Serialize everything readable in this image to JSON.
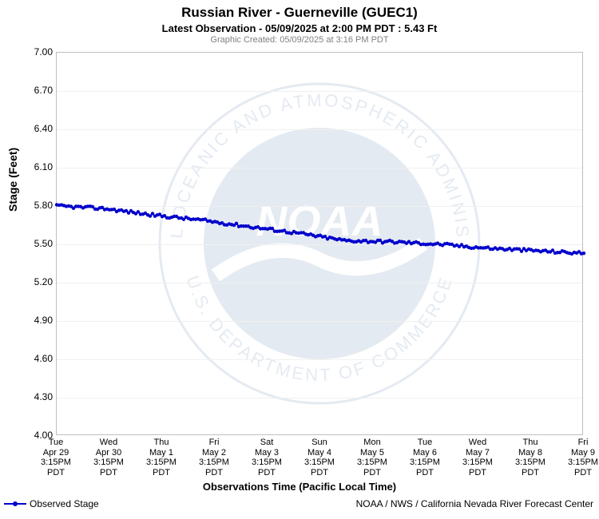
{
  "title": "Russian River - Guerneville (GUEC1)",
  "subtitle": "Latest Observation - 05/09/2025 at 2:00 PM PDT : 5.43 Ft",
  "created": "Graphic Created: 05/09/2025 at 3:16 PM PDT",
  "watermark_text": "NOAA",
  "chart": {
    "type": "line",
    "background_color": "#ffffff",
    "grid_color": "#f0f0f0",
    "border_color": "#bfbfbf",
    "series_color": "#0000cc",
    "marker_radius": 2.2,
    "line_width": 1.5,
    "ylabel": "Stage (Feet)",
    "xlabel": "Observations Time (Pacific Local Time)",
    "ylabel_fontsize": 14,
    "xlabel_fontsize": 13,
    "tick_fontsize": 12,
    "ylim": [
      4.0,
      7.0
    ],
    "ytick_step": 0.3,
    "yticks": [
      4.0,
      4.3,
      4.6,
      4.9,
      5.2,
      5.5,
      5.8,
      6.1,
      6.4,
      6.7,
      7.0
    ],
    "xtick_labels": [
      [
        "Tue",
        "Apr 29",
        "3:15PM",
        "PDT"
      ],
      [
        "Wed",
        "Apr 30",
        "3:15PM",
        "PDT"
      ],
      [
        "Thu",
        "May 1",
        "3:15PM",
        "PDT"
      ],
      [
        "Fri",
        "May 2",
        "3:15PM",
        "PDT"
      ],
      [
        "Sat",
        "May 3",
        "3:15PM",
        "PDT"
      ],
      [
        "Sun",
        "May 4",
        "3:15PM",
        "PDT"
      ],
      [
        "Mon",
        "May 5",
        "3:15PM",
        "PDT"
      ],
      [
        "Tue",
        "May 6",
        "3:15PM",
        "PDT"
      ],
      [
        "Wed",
        "May 7",
        "3:15PM",
        "PDT"
      ],
      [
        "Thu",
        "May 8",
        "3:15PM",
        "PDT"
      ],
      [
        "Fri",
        "May 9",
        "3:15PM",
        "PDT"
      ]
    ],
    "x_count": 11,
    "base_values": [
      5.8,
      5.78,
      5.73,
      5.69,
      5.64,
      5.59,
      5.53,
      5.52,
      5.5,
      5.47,
      5.45,
      5.43
    ],
    "noise_amplitude": 0.012,
    "points_per_segment": 20,
    "legend_label": "Observed Stage",
    "attribution": "NOAA / NWS / California Nevada River Forecast Center"
  }
}
